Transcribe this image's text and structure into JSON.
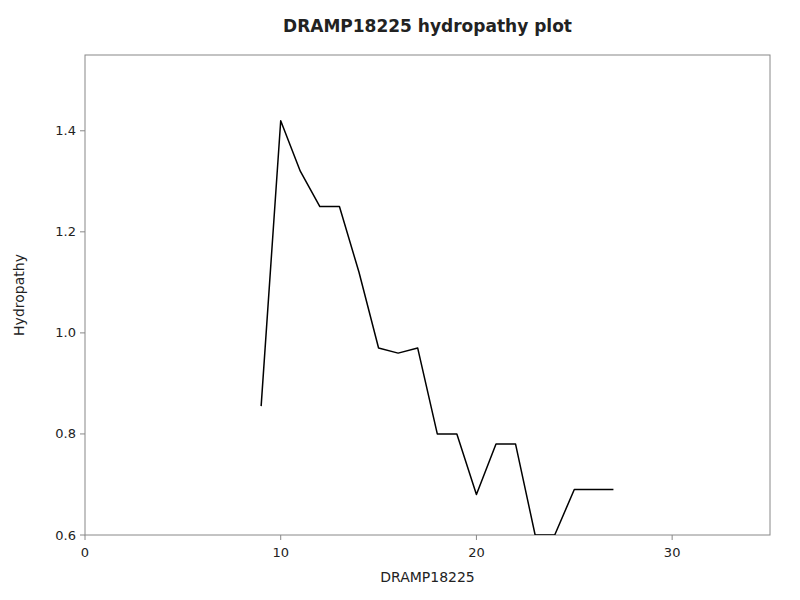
{
  "chart_data": {
    "type": "line",
    "title": "DRAMP18225 hydropathy plot",
    "x_label": "DRAMP18225",
    "y_label": "Hydropathy",
    "x": [
      9,
      10,
      11,
      12,
      13,
      14,
      15,
      16,
      17,
      18,
      19,
      20,
      21,
      22,
      23,
      24,
      25,
      26,
      27
    ],
    "values": [
      0.855,
      1.42,
      1.32,
      1.25,
      1.25,
      1.12,
      0.97,
      0.96,
      0.97,
      0.8,
      0.8,
      0.68,
      0.78,
      0.78,
      0.6,
      0.6,
      0.69,
      0.69,
      0.69
    ],
    "color": "#000000",
    "xlim": [
      0,
      35
    ],
    "ylim": [
      0.6,
      1.55
    ],
    "xticks": [
      0,
      10,
      20,
      30
    ],
    "yticks": [
      0.6,
      0.8,
      {
        "value": 1.0,
        "label": "1.0"
      },
      1.2,
      1.4
    ],
    "grid": false
  }
}
